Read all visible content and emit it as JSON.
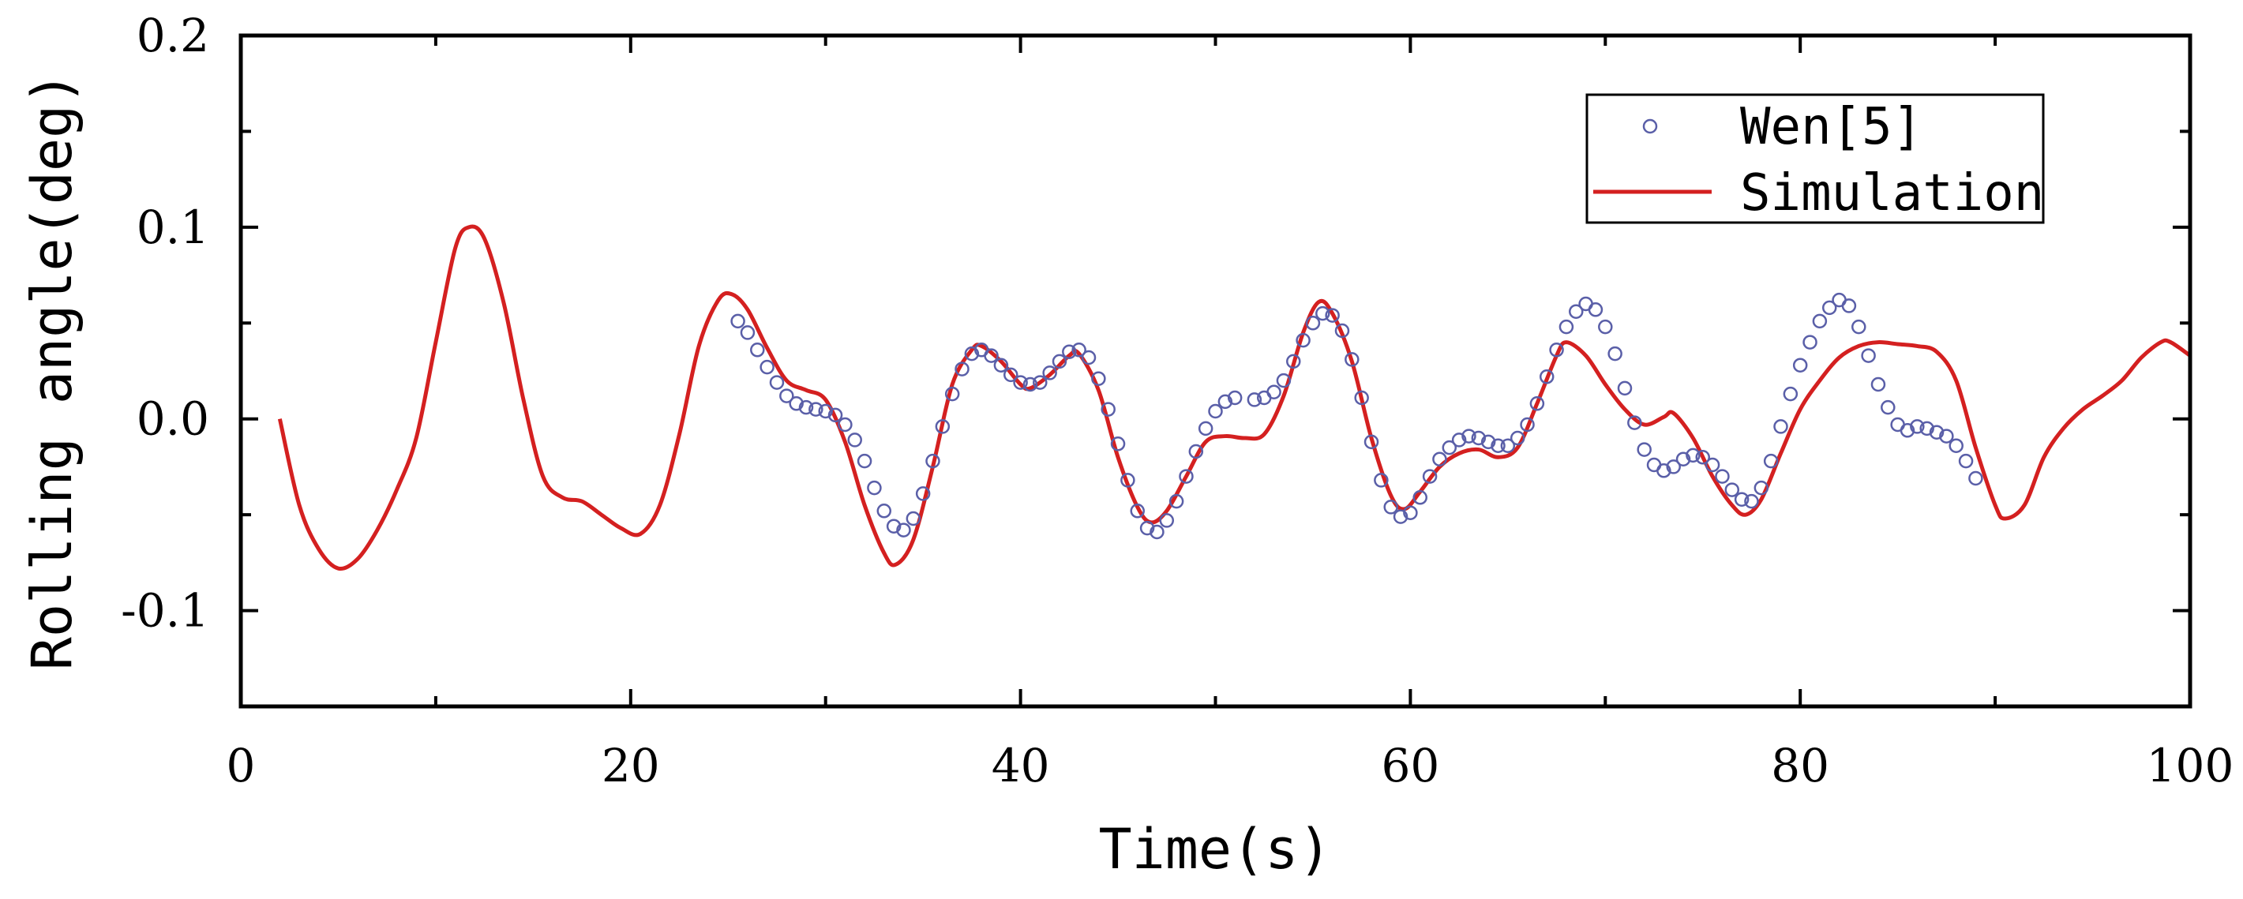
{
  "chart_data": {
    "type": "line",
    "title": "",
    "xlabel": "Time(s)",
    "ylabel": "Rolling angle(deg)",
    "xlim": [
      0,
      100
    ],
    "ylim": [
      -0.15,
      0.2
    ],
    "x_ticks": [
      0,
      20,
      40,
      60,
      80,
      100
    ],
    "x_tick_labels": [
      "0",
      "20",
      "40",
      "60",
      "80",
      "100"
    ],
    "y_ticks": [
      -0.1,
      0.0,
      0.1,
      0.2
    ],
    "y_tick_labels": [
      "-0.1",
      "0.0",
      "0.1",
      "0.2"
    ],
    "grid": false,
    "legend_position": "top-right",
    "series": [
      {
        "name": "Wen[5]",
        "style": "markers",
        "marker": "open-circle",
        "color": "#5a5fa8",
        "points": [
          [
            25.5,
            0.051
          ],
          [
            26.0,
            0.045
          ],
          [
            26.5,
            0.036
          ],
          [
            27.0,
            0.027
          ],
          [
            27.5,
            0.019
          ],
          [
            28.0,
            0.012
          ],
          [
            28.5,
            0.008
          ],
          [
            29.0,
            0.006
          ],
          [
            29.5,
            0.005
          ],
          [
            30.0,
            0.004
          ],
          [
            30.5,
            0.002
          ],
          [
            31.0,
            -0.003
          ],
          [
            31.5,
            -0.011
          ],
          [
            32.0,
            -0.022
          ],
          [
            32.5,
            -0.036
          ],
          [
            33.0,
            -0.048
          ],
          [
            33.5,
            -0.056
          ],
          [
            34.0,
            -0.058
          ],
          [
            34.5,
            -0.052
          ],
          [
            35.0,
            -0.039
          ],
          [
            35.5,
            -0.022
          ],
          [
            36.0,
            -0.004
          ],
          [
            36.5,
            0.013
          ],
          [
            37.0,
            0.026
          ],
          [
            37.5,
            0.034
          ],
          [
            38.0,
            0.036
          ],
          [
            38.5,
            0.033
          ],
          [
            39.0,
            0.028
          ],
          [
            39.5,
            0.023
          ],
          [
            40.0,
            0.019
          ],
          [
            40.5,
            0.018
          ],
          [
            41.0,
            0.019
          ],
          [
            41.5,
            0.024
          ],
          [
            42.0,
            0.03
          ],
          [
            42.5,
            0.035
          ],
          [
            43.0,
            0.036
          ],
          [
            43.5,
            0.032
          ],
          [
            44.0,
            0.021
          ],
          [
            44.5,
            0.005
          ],
          [
            45.0,
            -0.013
          ],
          [
            45.5,
            -0.032
          ],
          [
            46.0,
            -0.048
          ],
          [
            46.5,
            -0.057
          ],
          [
            47.0,
            -0.059
          ],
          [
            47.5,
            -0.053
          ],
          [
            48.0,
            -0.043
          ],
          [
            48.5,
            -0.03
          ],
          [
            49.0,
            -0.017
          ],
          [
            49.5,
            -0.005
          ],
          [
            50.0,
            0.004
          ],
          [
            50.5,
            0.009
          ],
          [
            51.0,
            0.011
          ],
          [
            52.0,
            0.01
          ],
          [
            52.5,
            0.011
          ],
          [
            53.0,
            0.014
          ],
          [
            53.5,
            0.02
          ],
          [
            54.0,
            0.03
          ],
          [
            54.5,
            0.041
          ],
          [
            55.0,
            0.05
          ],
          [
            55.5,
            0.055
          ],
          [
            56.0,
            0.054
          ],
          [
            56.5,
            0.046
          ],
          [
            57.0,
            0.031
          ],
          [
            57.5,
            0.011
          ],
          [
            58.0,
            -0.012
          ],
          [
            58.5,
            -0.032
          ],
          [
            59.0,
            -0.046
          ],
          [
            59.5,
            -0.051
          ],
          [
            60.0,
            -0.049
          ],
          [
            60.5,
            -0.041
          ],
          [
            61.0,
            -0.03
          ],
          [
            61.5,
            -0.021
          ],
          [
            62.0,
            -0.015
          ],
          [
            62.5,
            -0.011
          ],
          [
            63.0,
            -0.009
          ],
          [
            63.5,
            -0.01
          ],
          [
            64.0,
            -0.012
          ],
          [
            64.5,
            -0.014
          ],
          [
            65.0,
            -0.014
          ],
          [
            65.5,
            -0.01
          ],
          [
            66.0,
            -0.003
          ],
          [
            66.5,
            0.008
          ],
          [
            67.0,
            0.022
          ],
          [
            67.5,
            0.036
          ],
          [
            68.0,
            0.048
          ],
          [
            68.5,
            0.056
          ],
          [
            69.0,
            0.06
          ],
          [
            69.5,
            0.057
          ],
          [
            70.0,
            0.048
          ],
          [
            70.5,
            0.034
          ],
          [
            71.0,
            0.016
          ],
          [
            71.5,
            -0.002
          ],
          [
            72.0,
            -0.016
          ],
          [
            72.5,
            -0.024
          ],
          [
            73.0,
            -0.027
          ],
          [
            73.5,
            -0.025
          ],
          [
            74.0,
            -0.021
          ],
          [
            74.5,
            -0.019
          ],
          [
            75.0,
            -0.02
          ],
          [
            75.5,
            -0.024
          ],
          [
            76.0,
            -0.03
          ],
          [
            76.5,
            -0.037
          ],
          [
            77.0,
            -0.042
          ],
          [
            77.5,
            -0.043
          ],
          [
            78.0,
            -0.036
          ],
          [
            78.5,
            -0.022
          ],
          [
            79.0,
            -0.004
          ],
          [
            79.5,
            0.013
          ],
          [
            80.0,
            0.028
          ],
          [
            80.5,
            0.04
          ],
          [
            81.0,
            0.051
          ],
          [
            81.5,
            0.058
          ],
          [
            82.0,
            0.062
          ],
          [
            82.5,
            0.059
          ],
          [
            83.0,
            0.048
          ],
          [
            83.5,
            0.033
          ],
          [
            84.0,
            0.018
          ],
          [
            84.5,
            0.006
          ],
          [
            85.0,
            -0.003
          ],
          [
            85.5,
            -0.006
          ],
          [
            86.0,
            -0.004
          ],
          [
            86.5,
            -0.005
          ],
          [
            87.0,
            -0.007
          ],
          [
            87.5,
            -0.009
          ],
          [
            88.0,
            -0.014
          ],
          [
            88.5,
            -0.022
          ],
          [
            89.0,
            -0.031
          ]
        ]
      },
      {
        "name": "Simulation",
        "style": "line",
        "color": "#d42020",
        "points": [
          [
            2.0,
            0.0
          ],
          [
            3.0,
            -0.045
          ],
          [
            4.0,
            -0.068
          ],
          [
            5.0,
            -0.078
          ],
          [
            6.0,
            -0.073
          ],
          [
            7.0,
            -0.058
          ],
          [
            8.0,
            -0.037
          ],
          [
            9.0,
            -0.01
          ],
          [
            10.0,
            0.04
          ],
          [
            11.0,
            0.089
          ],
          [
            11.7,
            0.1
          ],
          [
            12.5,
            0.094
          ],
          [
            13.5,
            0.06
          ],
          [
            14.5,
            0.01
          ],
          [
            15.5,
            -0.03
          ],
          [
            16.5,
            -0.041
          ],
          [
            17.5,
            -0.043
          ],
          [
            18.5,
            -0.05
          ],
          [
            19.5,
            -0.057
          ],
          [
            20.5,
            -0.06
          ],
          [
            21.5,
            -0.045
          ],
          [
            22.5,
            -0.008
          ],
          [
            23.5,
            0.038
          ],
          [
            24.5,
            0.062
          ],
          [
            25.2,
            0.065
          ],
          [
            26.0,
            0.057
          ],
          [
            27.0,
            0.037
          ],
          [
            28.0,
            0.02
          ],
          [
            29.0,
            0.015
          ],
          [
            30.0,
            0.01
          ],
          [
            31.0,
            -0.012
          ],
          [
            32.0,
            -0.045
          ],
          [
            33.0,
            -0.07
          ],
          [
            33.6,
            -0.076
          ],
          [
            34.5,
            -0.063
          ],
          [
            35.5,
            -0.025
          ],
          [
            36.5,
            0.018
          ],
          [
            37.5,
            0.036
          ],
          [
            38.0,
            0.038
          ],
          [
            39.0,
            0.03
          ],
          [
            40.0,
            0.018
          ],
          [
            40.5,
            0.016
          ],
          [
            41.5,
            0.023
          ],
          [
            42.5,
            0.033
          ],
          [
            43.0,
            0.034
          ],
          [
            44.0,
            0.015
          ],
          [
            45.0,
            -0.02
          ],
          [
            46.0,
            -0.046
          ],
          [
            46.7,
            -0.054
          ],
          [
            47.5,
            -0.048
          ],
          [
            48.5,
            -0.03
          ],
          [
            49.5,
            -0.012
          ],
          [
            50.5,
            -0.009
          ],
          [
            51.5,
            -0.01
          ],
          [
            52.5,
            -0.008
          ],
          [
            53.5,
            0.012
          ],
          [
            54.5,
            0.045
          ],
          [
            55.3,
            0.061
          ],
          [
            56.0,
            0.055
          ],
          [
            57.0,
            0.03
          ],
          [
            58.0,
            -0.01
          ],
          [
            59.0,
            -0.04
          ],
          [
            59.7,
            -0.047
          ],
          [
            60.5,
            -0.038
          ],
          [
            61.5,
            -0.025
          ],
          [
            62.5,
            -0.018
          ],
          [
            63.5,
            -0.016
          ],
          [
            64.5,
            -0.02
          ],
          [
            65.5,
            -0.015
          ],
          [
            66.5,
            0.008
          ],
          [
            67.5,
            0.033
          ],
          [
            68.0,
            0.04
          ],
          [
            69.0,
            0.033
          ],
          [
            70.0,
            0.018
          ],
          [
            71.0,
            0.005
          ],
          [
            72.0,
            -0.003
          ],
          [
            73.0,
            0.001
          ],
          [
            73.5,
            0.003
          ],
          [
            74.5,
            -0.01
          ],
          [
            75.5,
            -0.03
          ],
          [
            76.5,
            -0.045
          ],
          [
            77.2,
            -0.05
          ],
          [
            78.0,
            -0.042
          ],
          [
            79.0,
            -0.018
          ],
          [
            80.0,
            0.005
          ],
          [
            81.0,
            0.02
          ],
          [
            82.0,
            0.032
          ],
          [
            83.0,
            0.038
          ],
          [
            84.0,
            0.04
          ],
          [
            85.0,
            0.039
          ],
          [
            86.0,
            0.038
          ],
          [
            87.0,
            0.035
          ],
          [
            88.0,
            0.02
          ],
          [
            89.0,
            -0.015
          ],
          [
            90.0,
            -0.045
          ],
          [
            90.5,
            -0.052
          ],
          [
            91.5,
            -0.045
          ],
          [
            92.5,
            -0.02
          ],
          [
            93.5,
            -0.005
          ],
          [
            94.5,
            0.005
          ],
          [
            95.5,
            0.012
          ],
          [
            96.5,
            0.02
          ],
          [
            97.5,
            0.032
          ],
          [
            98.5,
            0.04
          ],
          [
            99.0,
            0.04
          ],
          [
            100.0,
            0.033
          ]
        ]
      }
    ]
  }
}
